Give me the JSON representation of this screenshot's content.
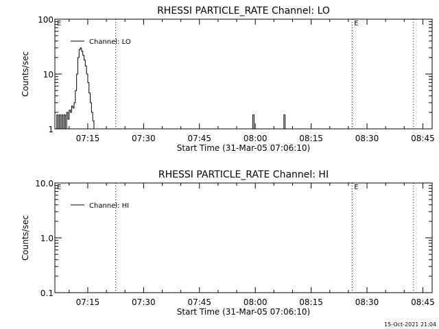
{
  "chart_data": [
    {
      "type": "line",
      "title": "RHESSI PARTICLE_RATE Channel: LO",
      "xlabel": "Start Time (31-Mar-05 07:06:10)",
      "ylabel": "Counts/sec",
      "yscale": "log",
      "xlim": [
        "07:06:10",
        "08:47:30"
      ],
      "ylim": [
        1,
        100
      ],
      "xticks": [
        "07:15",
        "07:30",
        "07:45",
        "08:00",
        "08:15",
        "08:30",
        "08:45"
      ],
      "yticks": [
        "1",
        "10",
        "100"
      ],
      "grid": false,
      "legend": {
        "position": "top-left",
        "entries": [
          "Channel: LO"
        ]
      },
      "event_markers": {
        "label": "E",
        "x": [
          "07:06:10",
          "08:26:00"
        ],
        "dotted_lines": [
          "07:22:30",
          "08:26:00",
          "08:42:30"
        ]
      },
      "series": [
        {
          "name": "Channel: LO",
          "x": [
            "07:06:10",
            "07:06:40",
            "07:07:00",
            "07:07:20",
            "07:07:40",
            "07:08:00",
            "07:08:20",
            "07:08:40",
            "07:09:00",
            "07:09:20",
            "07:09:40",
            "07:10:00",
            "07:10:20",
            "07:10:40",
            "07:11:00",
            "07:11:20",
            "07:11:40",
            "07:12:00",
            "07:12:20",
            "07:12:40",
            "07:13:00",
            "07:13:20",
            "07:13:40",
            "07:14:00",
            "07:14:20",
            "07:14:40",
            "07:15:00",
            "07:15:20",
            "07:15:40",
            "07:16:00",
            "07:16:20",
            "07:16:40",
            "07:17:00",
            "07:17:20",
            "07:59:00",
            "07:59:20",
            "07:59:40",
            "08:07:20",
            "08:07:40",
            "08:08:00"
          ],
          "values": [
            1,
            1.8,
            1,
            1.8,
            1,
            1.8,
            1,
            1.8,
            1,
            2,
            1.5,
            2.2,
            2,
            2.6,
            2.4,
            3,
            5,
            10,
            20,
            28,
            30,
            26,
            22,
            18,
            14,
            10,
            7,
            4.5,
            3,
            2,
            1.4,
            1,
            1,
            1,
            1,
            1.8,
            1,
            1,
            1.8,
            1
          ]
        }
      ]
    },
    {
      "type": "line",
      "title": "RHESSI PARTICLE_RATE Channel: HI",
      "xlabel": "Start Time (31-Mar-05 07:06:10)",
      "ylabel": "Counts/sec",
      "yscale": "log",
      "xlim": [
        "07:06:10",
        "08:47:30"
      ],
      "ylim": [
        0.1,
        10
      ],
      "xticks": [
        "07:15",
        "07:30",
        "07:45",
        "08:00",
        "08:15",
        "08:30",
        "08:45"
      ],
      "yticks": [
        "0.1",
        "1.0",
        "10.0"
      ],
      "grid": false,
      "legend": {
        "position": "top-left",
        "entries": [
          "Channel: HI"
        ]
      },
      "event_markers": {
        "label": "E",
        "x": [
          "07:06:10",
          "08:26:00"
        ],
        "dotted_lines": [
          "07:22:30",
          "08:26:00",
          "08:42:30"
        ]
      },
      "series": [
        {
          "name": "Channel: HI",
          "x": [],
          "values": []
        }
      ]
    }
  ],
  "timestamp": "15-Oct-2021 21:04"
}
